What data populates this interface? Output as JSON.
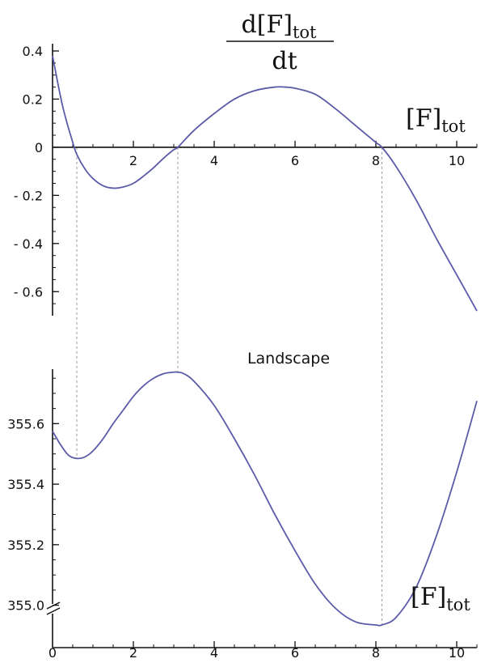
{
  "chart_data": [
    {
      "type": "line",
      "title_num": "d[F]",
      "title_num_sub": "tot",
      "title_den": "dt",
      "xlabel": "[F]",
      "xlabel_sub": "tot",
      "xlim": [
        0,
        10.5
      ],
      "ylim": [
        -0.7,
        0.41
      ],
      "x_ticks": [
        2,
        4,
        6,
        8,
        10
      ],
      "y_ticks": [
        0.4,
        0.2,
        0,
        -0.2,
        -0.4,
        -0.6
      ],
      "y_tick_labels": [
        "0.4",
        "0.2",
        "0",
        "- 0.2",
        "- 0.4",
        "- 0.6"
      ],
      "x_tick_labels": [
        "2",
        "4",
        "6",
        "8",
        "10"
      ],
      "x": [
        0,
        0.25,
        0.5,
        0.6,
        0.8,
        1.0,
        1.25,
        1.5,
        1.75,
        2.0,
        2.25,
        2.5,
        2.75,
        3.0,
        3.1,
        3.5,
        4.0,
        4.5,
        5.0,
        5.5,
        5.75,
        6.0,
        6.5,
        7.0,
        7.5,
        8.0,
        8.15,
        8.5,
        9.0,
        9.5,
        10.0,
        10.5
      ],
      "y": [
        0.38,
        0.17,
        0.02,
        -0.03,
        -0.09,
        -0.13,
        -0.16,
        -0.17,
        -0.165,
        -0.15,
        -0.12,
        -0.085,
        -0.045,
        -0.01,
        0.0,
        0.07,
        0.14,
        0.2,
        0.235,
        0.25,
        0.25,
        0.245,
        0.22,
        0.16,
        0.09,
        0.02,
        0.0,
        -0.08,
        -0.22,
        -0.38,
        -0.53,
        -0.68
      ],
      "series_color": "#5b5ba9"
    },
    {
      "type": "line",
      "title": "Landscape",
      "xlabel": "[F]",
      "xlabel_sub": "tot",
      "xlim": [
        0,
        10.5
      ],
      "ylim": [
        354.86,
        355.78
      ],
      "x_ticks": [
        0,
        2,
        4,
        6,
        8,
        10
      ],
      "x_tick_labels": [
        "0",
        "2",
        "4",
        "6",
        "8",
        "10"
      ],
      "y_ticks": [
        355.6,
        355.4,
        355.2,
        355.0
      ],
      "y_tick_labels": [
        "355.6",
        "355.4",
        "355.2",
        "355.0"
      ],
      "x": [
        0,
        0.2,
        0.4,
        0.6,
        0.8,
        1.0,
        1.25,
        1.5,
        1.75,
        2.0,
        2.25,
        2.5,
        2.75,
        3.0,
        3.1,
        3.25,
        3.5,
        4.0,
        4.5,
        5.0,
        5.5,
        6.0,
        6.5,
        7.0,
        7.5,
        8.0,
        8.15,
        8.5,
        9.0,
        9.5,
        10.0,
        10.5
      ],
      "y": [
        355.575,
        355.53,
        355.495,
        355.485,
        355.49,
        355.51,
        355.55,
        355.6,
        355.645,
        355.69,
        355.725,
        355.75,
        355.765,
        355.77,
        355.77,
        355.765,
        355.74,
        355.66,
        355.55,
        355.43,
        355.3,
        355.18,
        355.07,
        354.99,
        354.945,
        354.935,
        354.935,
        354.96,
        355.06,
        355.23,
        355.44,
        355.675
      ],
      "series_color": "#5b5ba9"
    }
  ],
  "guides_x": [
    0.6,
    3.1,
    8.15
  ]
}
